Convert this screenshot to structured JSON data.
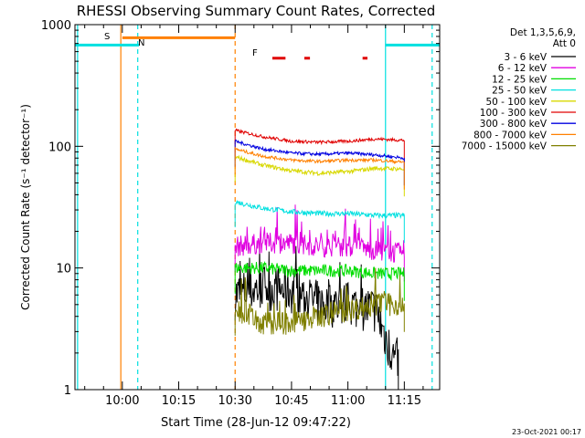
{
  "chart_data": {
    "type": "line",
    "title": "RHESSI Observing Summary Count Rates, Corrected",
    "xlabel": "Start Time (28-Jun-12 09:47:22)",
    "ylabel": "Corrected Count Rate (s⁻¹ detector⁻¹)",
    "y_scale": "log",
    "ylim": [
      1,
      1000
    ],
    "xlim_minutes_after_0947": [
      0,
      97
    ],
    "x_ticks": [
      {
        "label": "10:00",
        "minute": 12.6
      },
      {
        "label": "10:15",
        "minute": 27.6
      },
      {
        "label": "10:30",
        "minute": 42.6
      },
      {
        "label": "10:45",
        "minute": 57.6
      },
      {
        "label": "11:00",
        "minute": 72.6
      },
      {
        "label": "11:15",
        "minute": 87.6
      }
    ],
    "y_ticks": [
      {
        "label": "1",
        "value": 1
      },
      {
        "label": "10",
        "value": 10
      },
      {
        "label": "100",
        "value": 100
      },
      {
        "label": "1000",
        "value": 1000
      }
    ],
    "legend_header": [
      "Det 1,3,5,6,9,",
      "Att 0"
    ],
    "legend_position": "right",
    "series": [
      {
        "name": "3 - 6 keV",
        "color": "#000000",
        "start": 7.5,
        "end": 8.0,
        "noise": 0.45,
        "x": [
          42.6,
          50,
          57.6,
          65,
          72.6,
          80,
          83,
          86
        ],
        "y": [
          6,
          7,
          6.5,
          5,
          5,
          4.5,
          2.5,
          1.5
        ]
      },
      {
        "name": "6 - 12 keV",
        "color": "#e000e0",
        "start": 7.5,
        "end": 8.0,
        "noise": 0.2,
        "x": [
          42.6,
          50,
          57.6,
          65,
          72.6,
          80,
          87.6
        ],
        "y": [
          15,
          16,
          16,
          15,
          15,
          14,
          13
        ]
      },
      {
        "name": "12 - 25 keV",
        "color": "#00dd00",
        "start": 7.5,
        "end": 8.0,
        "noise": 0.12,
        "x": [
          42.6,
          50,
          57.6,
          65,
          72.6,
          80,
          87.6
        ],
        "y": [
          10,
          10,
          9.5,
          9.5,
          9.5,
          9,
          9
        ]
      },
      {
        "name": "25 - 50 keV",
        "color": "#00e0e0",
        "start": 7.5,
        "end": 8.0,
        "noise": 0.05,
        "x": [
          42.6,
          50,
          57.6,
          65,
          72.6,
          80,
          87.6
        ],
        "y": [
          35,
          31,
          29,
          28,
          28,
          27,
          27
        ]
      },
      {
        "name": "50 - 100 keV",
        "color": "#d8d800",
        "start": 7.5,
        "end": 8.0,
        "noise": 0.04,
        "x": [
          42.6,
          50,
          57.6,
          65,
          72.6,
          80,
          87.6
        ],
        "y": [
          82,
          70,
          63,
          60,
          62,
          66,
          65
        ]
      },
      {
        "name": "100 - 300 keV",
        "color": "#e00000",
        "start": 7.5,
        "end": 8.0,
        "noise": 0.03,
        "x": [
          42.6,
          50,
          57.6,
          65,
          72.6,
          80,
          87.6
        ],
        "y": [
          135,
          120,
          110,
          108,
          110,
          115,
          112
        ]
      },
      {
        "name": "300 - 800 keV",
        "color": "#0000e0",
        "start": 7.5,
        "end": 8.0,
        "noise": 0.03,
        "x": [
          42.6,
          50,
          57.6,
          65,
          72.6,
          80,
          87.6
        ],
        "y": [
          110,
          95,
          88,
          86,
          88,
          85,
          80
        ]
      },
      {
        "name": "800 - 7000 keV",
        "color": "#ff8000",
        "start": 7.5,
        "end": 8.0,
        "noise": 0.03,
        "x": [
          42.6,
          50,
          57.6,
          65,
          72.6,
          80,
          87.6
        ],
        "y": [
          95,
          83,
          77,
          75,
          77,
          77,
          74
        ]
      },
      {
        "name": "7000 - 15000 keV",
        "color": "#808000",
        "start": 7.5,
        "end": 8.0,
        "noise": 0.22,
        "x": [
          42.6,
          50,
          57.6,
          65,
          72.6,
          80,
          87.6
        ],
        "y": [
          4.5,
          3.5,
          3.5,
          4,
          4.5,
          5,
          5
        ]
      }
    ],
    "overlays": {
      "saa_label": "S",
      "night_label": "N",
      "flare_label": "F",
      "saa_bar": {
        "x": [
          12.6,
          42.6
        ],
        "y": 780,
        "color": "#ff8000"
      },
      "night_bars": [
        {
          "x": [
            0,
            17.0
          ],
          "y": 680,
          "color": "#00e0e0"
        },
        {
          "x": [
            82.5,
            97
          ],
          "y": 680,
          "color": "#00e0e0"
        }
      ],
      "flare_bars": [
        {
          "x": [
            52.5,
            56.0
          ],
          "y": 530,
          "color": "#e00000"
        },
        {
          "x": [
            61.0,
            62.5
          ],
          "y": 530,
          "color": "#e00000"
        },
        {
          "x": [
            76.5,
            77.8
          ],
          "y": 530,
          "color": "#e00000"
        }
      ],
      "vlines": [
        {
          "x": 0.7,
          "color": "#00e0e0",
          "dash": false
        },
        {
          "x": 12.2,
          "color": "#ff8000",
          "dash": false
        },
        {
          "x": 16.7,
          "color": "#00e0e0",
          "dash": true
        },
        {
          "x": 42.6,
          "color": "#ff8000",
          "dash": true
        },
        {
          "x": 82.6,
          "color": "#00e0e0",
          "dash": false
        },
        {
          "x": 95.0,
          "color": "#00e0e0",
          "dash": true
        }
      ]
    },
    "timestamp": "23-Oct-2021 00:17"
  }
}
